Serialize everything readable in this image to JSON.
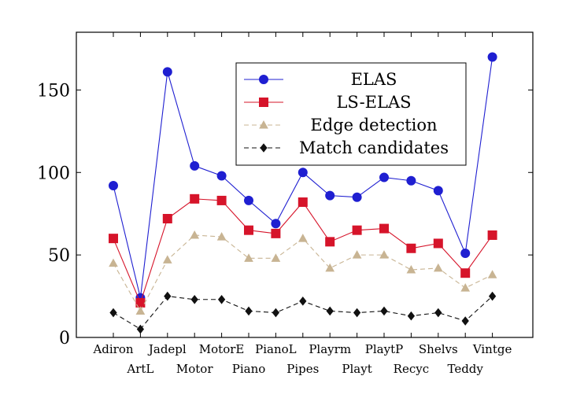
{
  "chart_data": {
    "type": "line",
    "categories": [
      "Adiron",
      "ArtL",
      "Jadepl",
      "Motor",
      "MotorE",
      "Piano",
      "PianoL",
      "Pipes",
      "Playrm",
      "Playt",
      "PlaytP",
      "Recyc",
      "Shelvs",
      "Teddy",
      "Vintge"
    ],
    "series": [
      {
        "name": "ELAS",
        "color": "#1f1fd1",
        "marker": "circle",
        "dash": "solid",
        "values": [
          92,
          24,
          161,
          104,
          98,
          83,
          69,
          100,
          86,
          85,
          97,
          95,
          89,
          51,
          170
        ]
      },
      {
        "name": "LS-ELAS",
        "color": "#d6142a",
        "marker": "square",
        "dash": "solid",
        "values": [
          60,
          21,
          72,
          84,
          83,
          65,
          63,
          82,
          58,
          65,
          66,
          54,
          57,
          39,
          62
        ]
      },
      {
        "name": "Edge detection",
        "color": "#c8b493",
        "marker": "triangle",
        "dash": "dashed",
        "values": [
          45,
          16,
          47,
          62,
          61,
          48,
          48,
          60,
          42,
          50,
          50,
          41,
          42,
          30,
          38
        ]
      },
      {
        "name": "Match candidates",
        "color": "#111111",
        "marker": "diamond",
        "dash": "dashed",
        "values": [
          15,
          5,
          25,
          23,
          23,
          16,
          15,
          22,
          16,
          15,
          16,
          13,
          15,
          10,
          25
        ]
      }
    ],
    "yticks": [
      "0",
      "50",
      "100",
      "150"
    ],
    "ylim": [
      0,
      185
    ],
    "legend_position": "top-right",
    "grid": false
  }
}
